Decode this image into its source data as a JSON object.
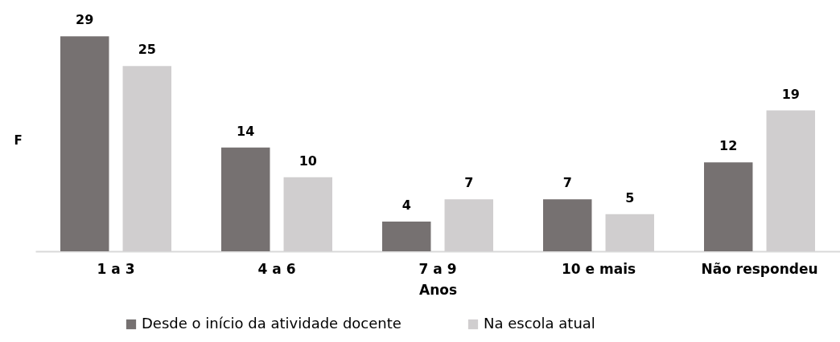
{
  "chart_data": {
    "type": "bar",
    "xlabel": "Anos",
    "ylabel": "F",
    "categories": [
      "1 a 3",
      "4 a 6",
      "7 a 9",
      "10 e mais",
      "Não respondeu"
    ],
    "series": [
      {
        "name": "Desde o início da atividade docente",
        "color": "#767171",
        "values": [
          29,
          14,
          4,
          7,
          12
        ]
      },
      {
        "name": "Na escola atual",
        "color": "#d0cecf",
        "values": [
          25,
          10,
          7,
          5,
          19
        ]
      }
    ],
    "data_labels": true,
    "legend": "bottom",
    "tick_labels": "x",
    "grid": false
  }
}
